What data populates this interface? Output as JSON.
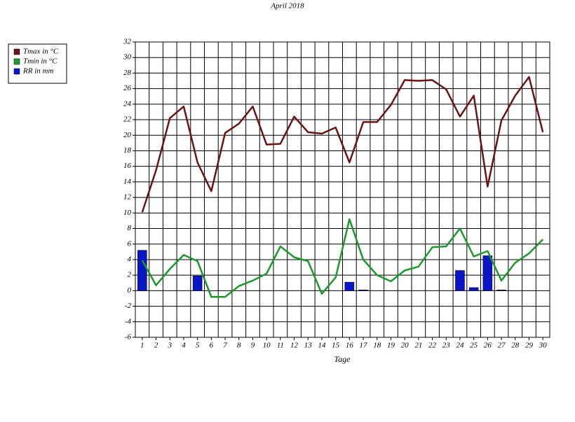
{
  "chart_data": {
    "type": "line",
    "title": "April 2018",
    "x_label": "Tage",
    "categories": [
      "1",
      "2",
      "3",
      "4",
      "5",
      "6",
      "7",
      "8",
      "9",
      "10",
      "11",
      "12",
      "13",
      "14",
      "15",
      "16",
      "17",
      "18",
      "19",
      "20",
      "21",
      "22",
      "23",
      "24",
      "25",
      "26",
      "27",
      "28",
      "29",
      "30"
    ],
    "series": [
      {
        "name": "Tmax in °C",
        "color": "#6b1414",
        "type": "line",
        "values": [
          10.1,
          15.5,
          22.2,
          23.7,
          16.5,
          12.8,
          20.3,
          21.5,
          23.7,
          18.8,
          18.9,
          22.4,
          20.4,
          20.2,
          21.0,
          16.5,
          21.7,
          21.7,
          23.9,
          27.1,
          27.0,
          27.1,
          25.9,
          22.4,
          25.1,
          13.4,
          21.9,
          25.1,
          27.5,
          20.4
        ]
      },
      {
        "name": "Tmin in °C",
        "color": "#1a9a2a",
        "type": "line",
        "values": [
          3.9,
          0.7,
          2.8,
          4.6,
          3.8,
          -0.8,
          -0.8,
          0.6,
          1.3,
          2.2,
          5.7,
          4.3,
          3.8,
          -0.4,
          1.7,
          9.2,
          4.0,
          2.0,
          1.2,
          2.6,
          3.1,
          5.6,
          5.7,
          8.0,
          4.4,
          5.1,
          1.3,
          3.6,
          4.8,
          6.6
        ]
      },
      {
        "name": "RR in mm",
        "color": "#0a14c8",
        "type": "bar",
        "values": [
          5.2,
          null,
          null,
          null,
          1.9,
          null,
          null,
          null,
          null,
          null,
          null,
          null,
          null,
          null,
          null,
          1.1,
          0.1,
          null,
          null,
          null,
          null,
          null,
          null,
          2.6,
          0.4,
          4.5,
          0.1,
          null,
          null,
          null
        ]
      }
    ],
    "ylim": [
      -6,
      32
    ],
    "yticks": [
      -6,
      -4,
      -2,
      0,
      2,
      4,
      6,
      8,
      10,
      12,
      14,
      16,
      18,
      20,
      22,
      24,
      26,
      28,
      30,
      32
    ],
    "grid": true,
    "legend": "top-left"
  }
}
